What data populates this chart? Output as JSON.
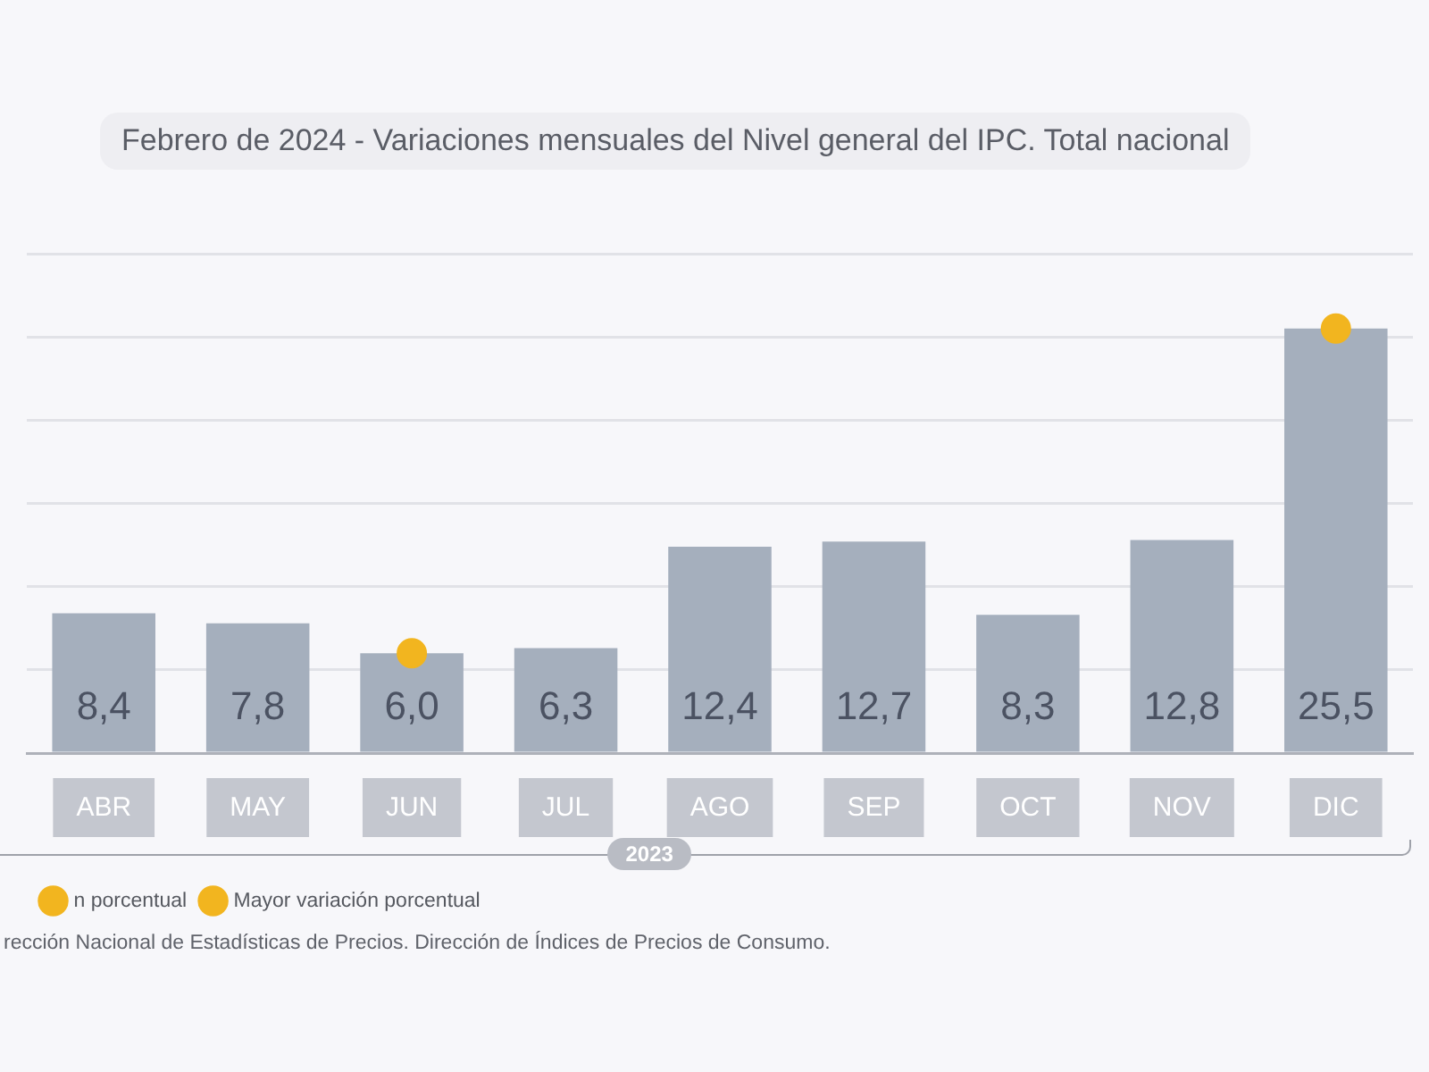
{
  "chart_data": {
    "type": "bar",
    "title": "Febrero de 2024 - Variaciones mensuales del Nivel general del IPC. Total nacional",
    "categories": [
      "ABR",
      "MAY",
      "JUN",
      "JUL",
      "AGO",
      "SEP",
      "OCT",
      "NOV",
      "DIC"
    ],
    "series": [
      {
        "color": "#a5afbd",
        "values": [
          8.4,
          7.8,
          6.0,
          6.3,
          12.4,
          12.7,
          8.3,
          12.8,
          25.5
        ],
        "value_labels": [
          "8,4",
          "7,8",
          "6,0",
          "6,3",
          "12,4",
          "12,7",
          "8,3",
          "12,8",
          "25,5"
        ]
      },
      {
        "type": "scatter",
        "name": "n porcentual",
        "color": "#f2b51f",
        "x": [
          "JUN"
        ],
        "values": [
          6.0
        ],
        "marker": "circle"
      },
      {
        "type": "scatter",
        "name": "Mayor variación porcentual",
        "color": "#f2b51f",
        "x": [
          "DIC"
        ],
        "values": [
          25.5
        ],
        "marker": "circle"
      }
    ],
    "ylim": [
      0,
      30
    ],
    "yticks": [
      {
        "value": 0,
        "label": null
      },
      {
        "value": 5,
        "label": null
      },
      {
        "value": 10,
        "label": null
      },
      {
        "value": 15,
        "label": null
      },
      {
        "value": 20,
        "label": null
      },
      {
        "value": 25,
        "label": null
      },
      {
        "value": 30,
        "label": null
      }
    ],
    "grid": "y",
    "tick_labels": "x",
    "legend": "bottom left",
    "annotations": [
      "2023",
      "rección Nacional de Estadísticas de Precios. Dirección de Índices de Precios de Consumo."
    ]
  }
}
